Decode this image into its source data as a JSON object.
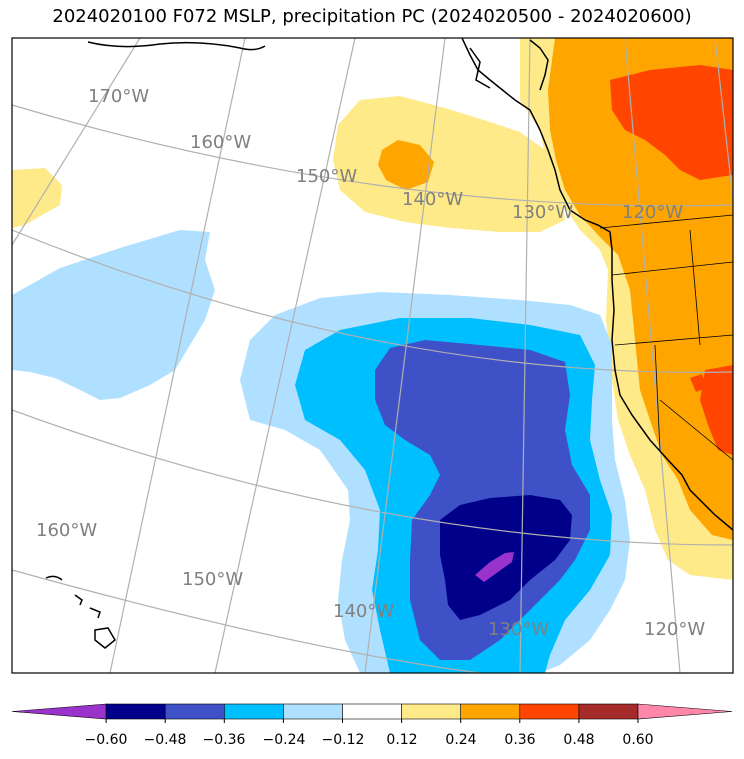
{
  "title": "2024020100 F072 MSLP, precipitation PC (2024020500 - 2024020600)",
  "map": {
    "longitude_labels": {
      "top_row": [
        "170°W",
        "160°W",
        "150°W",
        "140°W",
        "130°W",
        "120°W"
      ],
      "bottom_row": [
        "160°W",
        "150°W",
        "140°W",
        "130°W",
        "120°W"
      ]
    },
    "fill_colors": {
      "neg_strong": "#9933cc",
      "neg_060": "#00008b",
      "neg_048": "#3f51c7",
      "neg_036": "#00bfff",
      "neg_024": "#b0e0ff",
      "pos_012": "#ffea8a",
      "pos_024": "#ffa500",
      "pos_036": "#ff4500"
    }
  },
  "colorbar": {
    "tick_labels": [
      "−0.60",
      "−0.48",
      "−0.36",
      "−0.24",
      "−0.12",
      "0.12",
      "0.24",
      "0.36",
      "0.48",
      "0.60"
    ],
    "colors": [
      "#9933cc",
      "#00008b",
      "#3f51c7",
      "#00bfff",
      "#b0e0ff",
      "#ffffff",
      "#ffea8a",
      "#ffa500",
      "#ff4500",
      "#a52a2a",
      "#ff88aa"
    ]
  }
}
